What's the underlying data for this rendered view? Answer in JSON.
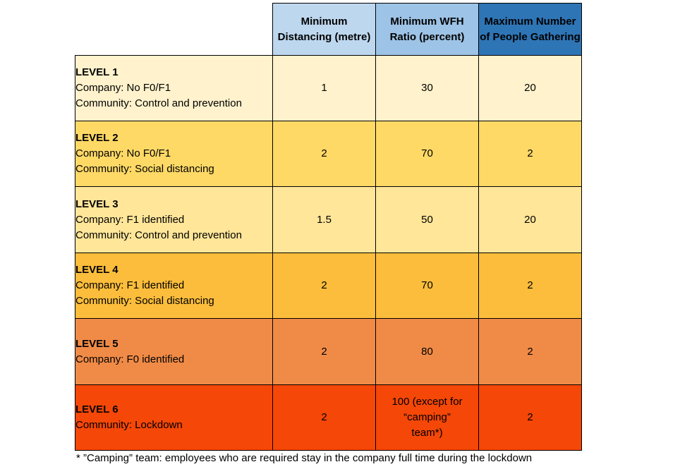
{
  "headers": [
    {
      "label": "Minimum Distancing (metre)",
      "color": "#bdd7ee"
    },
    {
      "label": "Minimum WFH Ratio (percent)",
      "color": "#9dc3e6"
    },
    {
      "label": "Maximum Number of People Gathering",
      "color": "#2e75b6"
    }
  ],
  "rows": [
    {
      "level": "LEVEL 1",
      "lines": [
        "Company: No F0/F1",
        "Community: Control and prevention"
      ],
      "distancing": "1",
      "wfh": "30",
      "gathering": "20",
      "color": "#fff2cc"
    },
    {
      "level": "LEVEL 2",
      "lines": [
        "Company: No F0/F1",
        "Community: Social distancing"
      ],
      "distancing": "2",
      "wfh": "70",
      "gathering": "2",
      "color": "#ffd966"
    },
    {
      "level": "LEVEL 3",
      "lines": [
        "Company: F1 identified",
        "Community: Control and prevention"
      ],
      "distancing": "1.5",
      "wfh": "50",
      "gathering": "20",
      "color": "#ffe699"
    },
    {
      "level": "LEVEL 4",
      "lines": [
        "Company: F1 identified",
        "Community: Social distancing"
      ],
      "distancing": "2",
      "wfh": "70",
      "gathering": "2",
      "color": "#fbbd3b"
    },
    {
      "level": "LEVEL 5",
      "lines": [
        "Company: F0 identified"
      ],
      "distancing": "2",
      "wfh": "80",
      "gathering": "2",
      "color": "#f08b47"
    },
    {
      "level": "LEVEL 6",
      "lines": [
        "Community: Lockdown"
      ],
      "distancing": "2",
      "wfh": "100 (except for “camping” team*)",
      "gathering": "2",
      "color": "#f54707"
    }
  ],
  "footnote": "* ”Camping” team: employees who are required stay in the company full time during the lockdown"
}
